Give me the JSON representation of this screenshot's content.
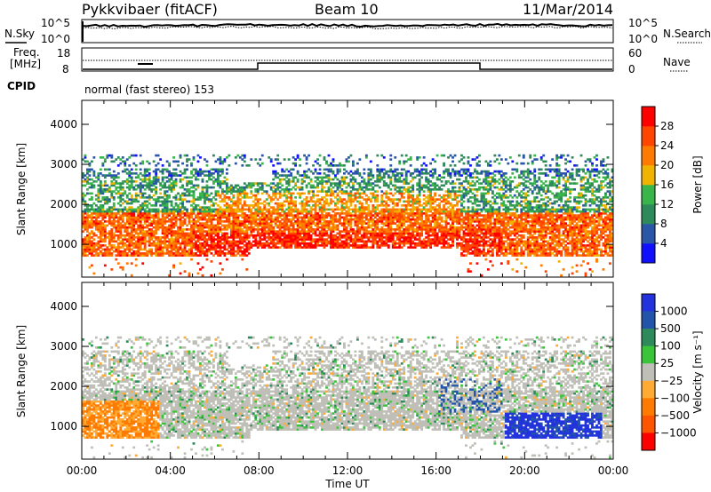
{
  "header": {
    "radar": "Pykkvibaer (fitACF)",
    "beam": "Beam 10",
    "date": "11/Mar/2014"
  },
  "noise_panel": {
    "left_label": "N.Sky",
    "right_label": "N.Search",
    "ticks_left": [
      "10^5",
      "10^0"
    ],
    "ticks_right": [
      "10^5",
      "10^0"
    ]
  },
  "freq_panel": {
    "left_label_1": "Freq.",
    "left_label_2": "[MHz]",
    "right_label": "Nave",
    "ticks_left": [
      "18",
      "8"
    ],
    "ticks_right": [
      "60",
      "0"
    ]
  },
  "cpid": {
    "label": "CPID",
    "text": "normal (fast stereo) 153"
  },
  "colors": {
    "power_scale": [
      "#1010ff",
      "#2a56a8",
      "#2e8a5a",
      "#39b54a",
      "#f0b400",
      "#ff7a00",
      "#ff4500",
      "#ff0000"
    ],
    "velocity_scale": [
      "#2233dd",
      "#2255aa",
      "#2e8a5a",
      "#39c43a",
      "#bfbfb8",
      "#ffaa33",
      "#ff7a00",
      "#ff5500",
      "#ff0000"
    ]
  },
  "chart_data": [
    {
      "type": "heatmap",
      "name": "power",
      "xlabel": "",
      "ylabel": "Slant Range [km]",
      "x_ticks": [
        "00:00",
        "04:00",
        "08:00",
        "12:00",
        "16:00",
        "20:00",
        "00:00"
      ],
      "y_ticks": [
        1000,
        2000,
        3000,
        4000
      ],
      "ylim": [
        180,
        4600
      ],
      "colorbar_label": "Power [dB]",
      "colorbar_ticks": [
        4,
        8,
        12,
        16,
        20,
        24,
        28
      ],
      "colorbar_range": [
        0,
        32
      ]
    },
    {
      "type": "heatmap",
      "name": "velocity",
      "xlabel": "Time UT",
      "ylabel": "Slant Range [km]",
      "x_ticks": [
        "00:00",
        "04:00",
        "08:00",
        "12:00",
        "16:00",
        "20:00",
        "00:00"
      ],
      "y_ticks": [
        1000,
        2000,
        3000,
        4000
      ],
      "ylim": [
        180,
        4600
      ],
      "colorbar_label": "Velocity [m s⁻¹]",
      "colorbar_ticks": [
        "1000",
        "500",
        "100",
        "25",
        "−25",
        "−100",
        "−500",
        "−1000"
      ]
    }
  ]
}
